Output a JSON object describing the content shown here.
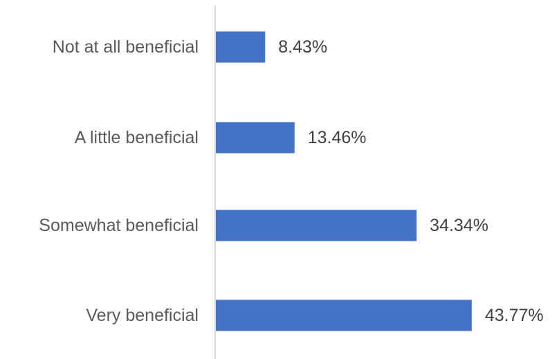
{
  "chart_data": {
    "type": "bar",
    "orientation": "horizontal",
    "categories": [
      "Not at all beneficial",
      "A little beneficial",
      "Somewhat beneficial",
      "Very beneficial"
    ],
    "values": [
      8.43,
      13.46,
      34.34,
      43.77
    ],
    "value_labels": [
      "8.43%",
      "13.46%",
      "34.34%",
      "43.77%"
    ],
    "title": "",
    "xlabel": "",
    "ylabel": "",
    "xlim": [
      0,
      50
    ],
    "grid": false,
    "legend": "none",
    "bar_color": "#4472C4",
    "axis_color": "#D9D9D9"
  }
}
